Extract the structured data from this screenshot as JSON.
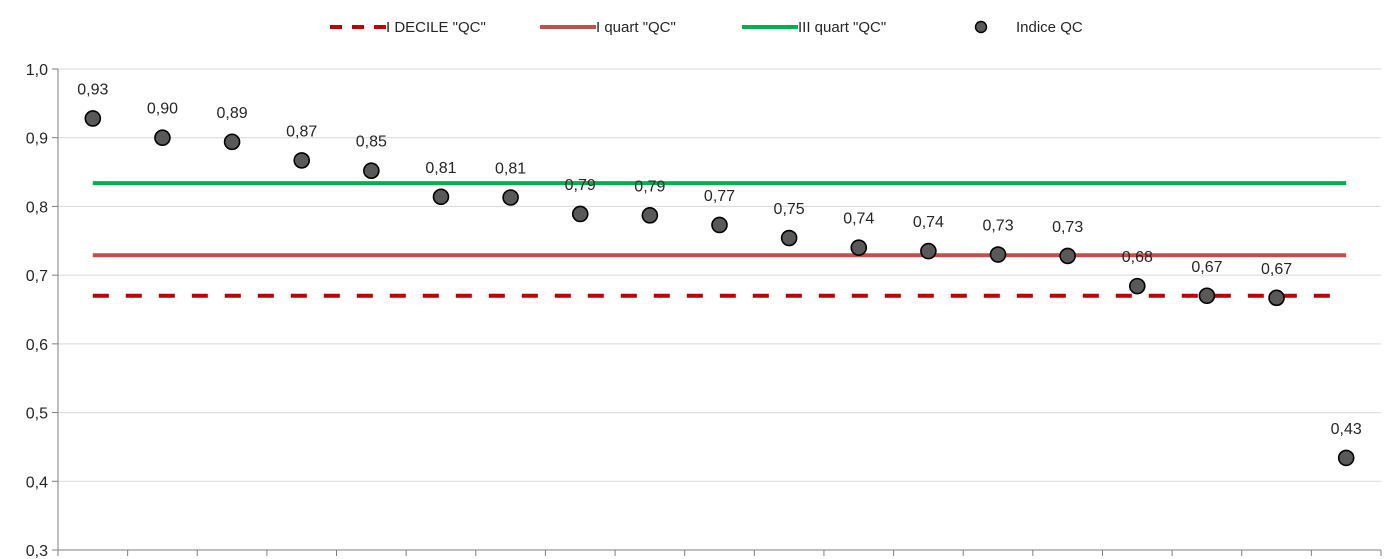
{
  "chart_data": {
    "type": "scatter",
    "title": "",
    "xlabel": "",
    "ylabel": "",
    "ylim": [
      0.3,
      1.0
    ],
    "ytick_step": 0.1,
    "y_tick_labels": [
      "0,3",
      "0,4",
      "0,5",
      "0,6",
      "0,7",
      "0,8",
      "0,9",
      "1,0"
    ],
    "grid": "horizontal",
    "legend_position": "top",
    "series": [
      {
        "name": "Indice QC",
        "kind": "points",
        "color": "#595959",
        "values": [
          0.928,
          0.9,
          0.894,
          0.867,
          0.852,
          0.814,
          0.813,
          0.789,
          0.787,
          0.773,
          0.754,
          0.74,
          0.735,
          0.73,
          0.728,
          0.684,
          0.67,
          0.667,
          0.434
        ],
        "data_labels": [
          "0,93",
          "0,90",
          "0,89",
          "0,87",
          "0,85",
          "0,81",
          "0,81",
          "0,79",
          "0,79",
          "0,77",
          "0,75",
          "0,74",
          "0,74",
          "0,73",
          "0,73",
          "0,68",
          "0,67",
          "0,67",
          "0,43"
        ]
      },
      {
        "name": "I DECILE \"QC\"",
        "kind": "hline",
        "style": "dashed",
        "color": "#C00000",
        "value": 0.67
      },
      {
        "name": "I quart \"QC\"",
        "kind": "hline",
        "style": "solid",
        "color": "#C0504D",
        "value": 0.729
      },
      {
        "name": "III quart \"QC\"",
        "kind": "hline",
        "style": "solid",
        "color": "#00B050",
        "value": 0.834
      }
    ],
    "legend": [
      {
        "label": "I DECILE \"QC\"",
        "series": 1
      },
      {
        "label": "I quart \"QC\"",
        "series": 2
      },
      {
        "label": "III quart \"QC\"",
        "series": 3
      },
      {
        "label": "Indice QC",
        "series": 0
      }
    ]
  }
}
